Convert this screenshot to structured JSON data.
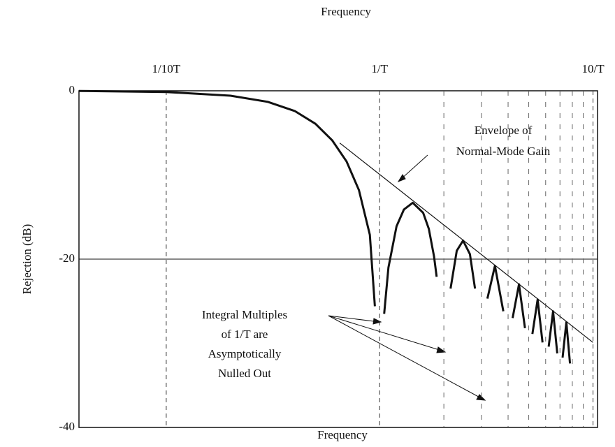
{
  "chart_data": {
    "type": "line",
    "title": "Frequency",
    "xlabel": "Frequency",
    "ylabel": "Rejection (dB)",
    "xscale": "log",
    "xlim": [
      0.039,
      10.5
    ],
    "xticks": [
      {
        "value": 0.1,
        "label": "1/10T"
      },
      {
        "value": 1,
        "label": "1/T"
      },
      {
        "value": 10,
        "label": "10/T"
      }
    ],
    "xgrid_minor": [
      2,
      3,
      4,
      5,
      6,
      7,
      8,
      9
    ],
    "ylim": [
      -40,
      0
    ],
    "yticks": [
      0,
      -20,
      -40
    ],
    "series": [
      {
        "color": "#111111",
        "x": [
          0.039,
          0.1,
          0.2,
          0.3,
          0.4,
          0.5,
          0.6,
          0.7,
          0.8,
          0.9,
          0.95,
          1,
          1.05,
          1.1,
          1.2,
          1.3,
          1.43,
          1.6,
          1.7,
          1.8,
          1.85,
          2,
          2.15,
          2.3,
          2.46,
          2.65,
          2.8,
          3,
          3.2,
          3.47,
          3.8,
          4,
          4.2,
          4.5,
          4.8,
          5,
          5.2,
          5.5,
          5.8,
          6,
          6.2,
          6.5,
          6.8,
          7,
          7.2,
          7.5,
          7.8
        ],
        "values": [
          -0.02,
          -0.14,
          -0.58,
          -1.32,
          -2.4,
          -3.92,
          -5.9,
          -8.4,
          -11.8,
          -17.1,
          -25.6,
          null,
          -26.5,
          -21.0,
          -16.1,
          -14.1,
          -13.3,
          -14.5,
          -16.4,
          -19.7,
          -22.1,
          null,
          -23.5,
          -19.0,
          -17.8,
          -19.4,
          -23.5,
          null,
          -24.7,
          -20.8,
          -26.2,
          null,
          -27.0,
          -23.0,
          -28.2,
          null,
          -28.9,
          -24.8,
          -29.9,
          null,
          -30.4,
          -26.2,
          -31.2,
          null,
          -31.7,
          -27.5,
          -32.4
        ]
      },
      {
        "color": "#111111",
        "x": [
          0.65,
          10
        ],
        "values": [
          -6.2,
          -29.9
        ]
      }
    ],
    "annotations": [
      {
        "lines": [
          "Envelope of",
          "Normal-Mode Gain"
        ]
      },
      {
        "lines": [
          "Integral Multiples",
          "of 1/T are",
          "Asymptotically",
          "Nulled Out"
        ]
      }
    ]
  }
}
